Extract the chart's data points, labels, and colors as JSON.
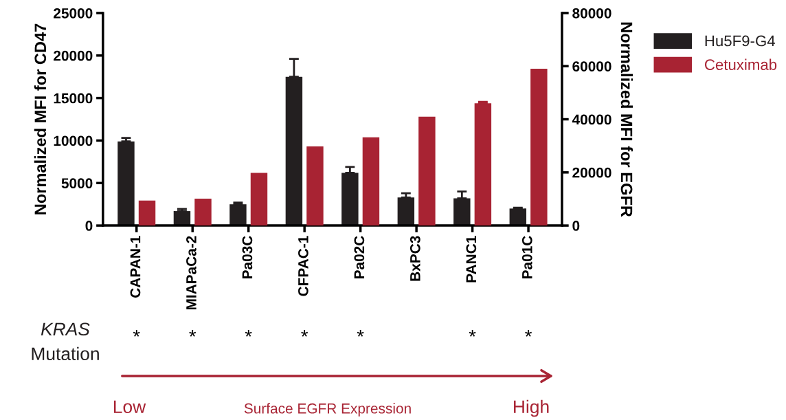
{
  "chart_data": {
    "type": "bar",
    "categories": [
      "CAPAN-1",
      "MIAPaCa-2",
      "Pa03C",
      "CFPAC-1",
      "Pa02C",
      "BxPC3",
      "PANC1",
      "Pa01C"
    ],
    "series": [
      {
        "name": "Hu5F9-G4",
        "color": "#231f20",
        "values": [
          9900,
          1700,
          2500,
          17500,
          6200,
          3300,
          3200,
          2000
        ],
        "errors": [
          [
            9900,
            10300
          ],
          [
            1700,
            1950
          ],
          [
            2500,
            2700
          ],
          [
            17500,
            19600
          ],
          [
            6200,
            6900
          ],
          [
            3300,
            3800
          ],
          [
            3200,
            4000
          ],
          [
            2000,
            2100
          ]
        ]
      },
      {
        "name": "Cetuximab",
        "color": "#a82333",
        "axis": "y2",
        "values": [
          9400,
          10100,
          19800,
          29800,
          33200,
          41000,
          46000,
          59000
        ],
        "errors": [
          null,
          null,
          null,
          null,
          null,
          null,
          [
            46000,
            46600
          ],
          null
        ]
      }
    ],
    "ylabel": "Normalized MFI for CD47",
    "y2label": "Normalized MFI for EGFR",
    "ylim": [
      0,
      25000
    ],
    "yticks": [
      0,
      5000,
      10000,
      15000,
      20000,
      25000
    ],
    "y2lim": [
      0,
      80000
    ],
    "y2ticks": [
      0,
      20000,
      40000,
      60000,
      80000
    ],
    "legend": "top right",
    "grid": false,
    "annotations": [
      "KRAS",
      "Mutation",
      "*",
      "*",
      "*",
      "*",
      "*",
      "*",
      "*",
      "Low",
      "Surface EGFR Expression",
      "High"
    ]
  }
}
